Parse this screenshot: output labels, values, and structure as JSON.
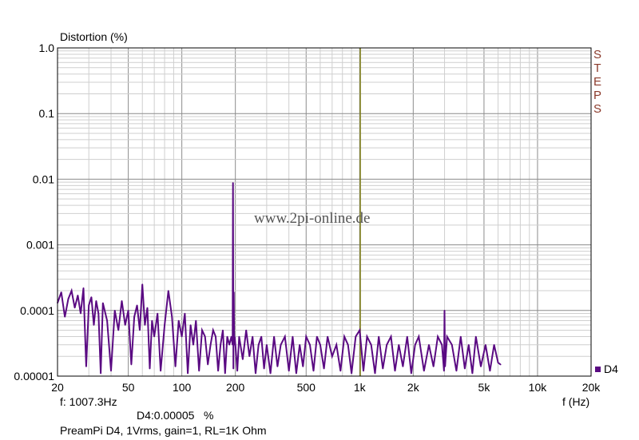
{
  "colors": {
    "series": "#5a0a82",
    "cursor": "#7a7a10",
    "grid_major": "#8c8c8c",
    "grid_minor": "#cfcfcf",
    "steps_text": "#8b3a2b"
  },
  "watermark": "www.2pi-online.de",
  "brand": [
    "S",
    "T",
    "E",
    "P",
    "S"
  ],
  "cursor_readout": "f: 1007.3Hz",
  "value_readout": "D4:0.00005   %",
  "caption": "PreamPi D4, 1Vrms, gain=1, RL=1K Ohm",
  "chart_data": {
    "type": "line",
    "title": "",
    "ylabel": "Distortion (%)",
    "xlabel": "f (Hz)",
    "x_scale": "log",
    "y_scale": "log",
    "xlim": [
      20,
      20000
    ],
    "ylim": [
      1e-05,
      1.0
    ],
    "grid": true,
    "legend_position": "bottom-right",
    "cursor_x": 1007.3,
    "x_ticks": [
      {
        "value": 20,
        "label": "20"
      },
      {
        "value": 50,
        "label": "50"
      },
      {
        "value": 100,
        "label": "100"
      },
      {
        "value": 200,
        "label": "200"
      },
      {
        "value": 500,
        "label": "500"
      },
      {
        "value": 1000,
        "label": "1k"
      },
      {
        "value": 2000,
        "label": "2k"
      },
      {
        "value": 5000,
        "label": "5k"
      },
      {
        "value": 10000,
        "label": "10k"
      },
      {
        "value": 20000,
        "label": "20k"
      }
    ],
    "y_ticks": [
      {
        "value": 1.0,
        "label": "1.0"
      },
      {
        "value": 0.1,
        "label": "0.1"
      },
      {
        "value": 0.01,
        "label": "0.01"
      },
      {
        "value": 0.001,
        "label": "0.001"
      },
      {
        "value": 0.0001,
        "label": "0.0001"
      },
      {
        "value": 1e-05,
        "label": "0.00001"
      }
    ],
    "series": [
      {
        "name": "D4",
        "x": [
          20,
          21,
          22,
          23,
          24,
          25,
          26,
          27,
          28,
          29,
          30,
          31,
          32,
          33,
          34,
          35,
          36,
          38,
          40,
          42,
          44,
          46,
          48,
          50,
          52,
          54,
          56,
          58,
          60,
          62,
          64,
          66,
          68,
          70,
          73,
          76,
          80,
          84,
          88,
          92,
          96,
          100,
          104,
          108,
          112,
          116,
          120,
          125,
          130,
          135,
          140,
          145,
          150,
          155,
          160,
          165,
          170,
          175,
          180,
          185,
          190,
          193,
          194,
          195,
          196,
          197,
          198,
          200,
          205,
          210,
          220,
          230,
          240,
          250,
          260,
          270,
          280,
          290,
          300,
          315,
          330,
          345,
          360,
          380,
          400,
          420,
          440,
          460,
          480,
          500,
          525,
          550,
          575,
          600,
          630,
          660,
          700,
          740,
          780,
          820,
          860,
          900,
          950,
          1000,
          1050,
          1100,
          1160,
          1220,
          1280,
          1350,
          1420,
          1500,
          1580,
          1660,
          1750,
          1850,
          1950,
          2050,
          2150,
          2300,
          2450,
          2600,
          2750,
          2900,
          2980,
          3000,
          3020,
          3100,
          3300,
          3500,
          3700,
          3900,
          4100,
          4300,
          4500,
          4800,
          5100,
          5400,
          5700,
          6000,
          6200
        ],
        "values": [
          0.00013,
          0.00019,
          8e-05,
          0.00015,
          0.0002,
          0.00011,
          0.00017,
          9e-05,
          0.00022,
          1.4e-05,
          0.00012,
          0.00016,
          6e-05,
          0.00014,
          9e-05,
          1.1e-05,
          0.00013,
          7e-05,
          1.2e-05,
          0.0001,
          5e-05,
          0.00014,
          6e-05,
          0.0001,
          1.5e-05,
          8e-05,
          0.00012,
          5e-05,
          0.00025,
          6e-05,
          0.00011,
          1.3e-05,
          7e-05,
          4e-05,
          9e-05,
          1.2e-05,
          6e-05,
          0.0002,
          8e-05,
          1.4e-05,
          7e-05,
          4e-05,
          9e-05,
          1.1e-05,
          6e-05,
          3e-05,
          7e-05,
          1.2e-05,
          5e-05,
          4e-05,
          1.5e-05,
          3e-05,
          5e-05,
          4e-05,
          1.2e-05,
          3e-05,
          5e-05,
          1.1e-05,
          4e-05,
          3e-05,
          4e-05,
          3e-05,
          0.0088,
          1.3e-05,
          0.00019,
          3e-05,
          4e-05,
          3e-05,
          1.2e-05,
          4e-05,
          1.8e-05,
          5e-05,
          2e-05,
          4e-05,
          1.1e-05,
          3e-05,
          4e-05,
          1.3e-05,
          3e-05,
          1.1e-05,
          4e-05,
          1.4e-05,
          3e-05,
          4e-05,
          1.2e-05,
          4e-05,
          1.1e-05,
          3e-05,
          1.4e-05,
          4e-05,
          3e-05,
          1.2e-05,
          4e-05,
          3e-05,
          1.3e-05,
          4e-05,
          2e-05,
          3e-05,
          1.2e-05,
          4e-05,
          3e-05,
          1.1e-05,
          4e-05,
          5e-05,
          1.2e-05,
          4e-05,
          3e-05,
          1.1e-05,
          4e-05,
          1.3e-05,
          3e-05,
          4e-05,
          1.2e-05,
          3e-05,
          1.4e-05,
          4e-05,
          1.1e-05,
          3e-05,
          4e-05,
          1.2e-05,
          3e-05,
          1.4e-05,
          4e-05,
          3e-05,
          1.2e-05,
          0.0001,
          1.4e-05,
          4e-05,
          3e-05,
          1.2e-05,
          4e-05,
          1.3e-05,
          3e-05,
          1.1e-05,
          4e-05,
          1.4e-05,
          3e-05,
          1.2e-05,
          3e-05,
          1.6e-05,
          1.5e-05
        ]
      }
    ]
  }
}
